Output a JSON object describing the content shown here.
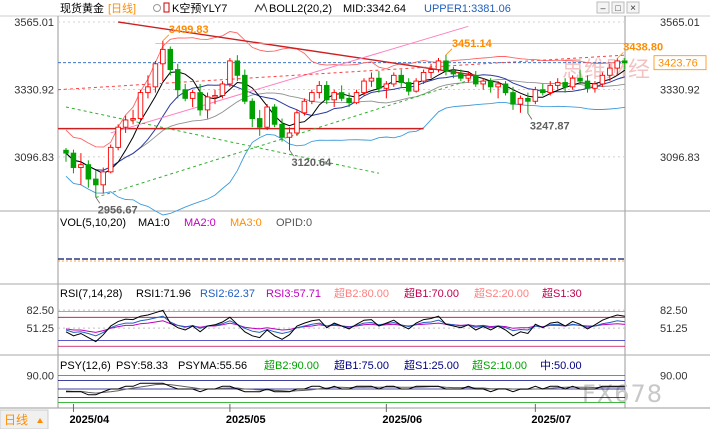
{
  "header": {
    "title": "现货黄金",
    "period": "[日线]",
    "indicator": "K空预YLY7",
    "boll_label": "BOLL2(20,2)",
    "mid_label": "MID:3342.64",
    "upper_label": "UPPER1:3381.06"
  },
  "window_controls": {
    "minimize": "–",
    "maximize": "□",
    "close": "×"
  },
  "colors": {
    "up": "#ff0000",
    "down": "#00a000",
    "ma5": "#000000",
    "ma10": "#0000ff",
    "boll_upper": "#ff6464",
    "boll_lower": "#3c9bdc",
    "accent": "#ff8c00",
    "blue_label": "#2060c0"
  },
  "watermark": {
    "top": "思维财经",
    "bottom": "FX678"
  },
  "corner_label": "日线",
  "chart_data": {
    "type": "candlestick",
    "title": "现货黄金",
    "y_ticks": [
      3565.01,
      3330.92,
      3096.83
    ],
    "y_range": [
      2930,
      3565.01
    ],
    "last_price_label": "3423.76",
    "last_price": 3423.76,
    "x_labels": [
      {
        "i": 1,
        "label": "2025/04"
      },
      {
        "i": 22,
        "label": "2025/05"
      },
      {
        "i": 43,
        "label": "2025/06"
      },
      {
        "i": 63,
        "label": "2025/07"
      }
    ],
    "annotations": [
      {
        "i": 13,
        "price": 3499.83,
        "label": "3499.83",
        "color": "#ff8c00"
      },
      {
        "i": 51,
        "price": 3451.14,
        "label": "3451.14",
        "color": "#ff8c00"
      },
      {
        "i": 74,
        "price": 3438.8,
        "label": "3438.80",
        "color": "#ff8c00"
      },
      {
        "i": 4,
        "price": 2956.67,
        "label": "2956.67",
        "color": "#606060"
      },
      {
        "i": 30,
        "price": 3120.64,
        "label": "3120.64",
        "color": "#606060"
      },
      {
        "i": 62,
        "price": 3247.87,
        "label": "3247.87",
        "color": "#606060"
      }
    ],
    "candles": [
      [
        3120,
        3128,
        3080,
        3110
      ],
      [
        3110,
        3122,
        3040,
        3060
      ],
      [
        3060,
        3110,
        3000,
        3070
      ],
      [
        3070,
        3085,
        2990,
        3020
      ],
      [
        3020,
        3050,
        2956.67,
        3000
      ],
      [
        3000,
        3060,
        2970,
        3045
      ],
      [
        3045,
        3140,
        3040,
        3130
      ],
      [
        3130,
        3210,
        3120,
        3200
      ],
      [
        3200,
        3240,
        3180,
        3225
      ],
      [
        3225,
        3260,
        3210,
        3230
      ],
      [
        3230,
        3330,
        3225,
        3320
      ],
      [
        3320,
        3380,
        3300,
        3340
      ],
      [
        3340,
        3430,
        3320,
        3420
      ],
      [
        3420,
        3499.83,
        3360,
        3470
      ],
      [
        3470,
        3480,
        3380,
        3400
      ],
      [
        3400,
        3420,
        3300,
        3330
      ],
      [
        3330,
        3350,
        3290,
        3300
      ],
      [
        3300,
        3330,
        3270,
        3320
      ],
      [
        3320,
        3350,
        3240,
        3260
      ],
      [
        3260,
        3320,
        3230,
        3305
      ],
      [
        3305,
        3330,
        3280,
        3310
      ],
      [
        3310,
        3360,
        3300,
        3350
      ],
      [
        3350,
        3440,
        3340,
        3430
      ],
      [
        3430,
        3450,
        3360,
        3380
      ],
      [
        3380,
        3400,
        3280,
        3290
      ],
      [
        3290,
        3300,
        3200,
        3230
      ],
      [
        3230,
        3260,
        3170,
        3200
      ],
      [
        3200,
        3280,
        3190,
        3270
      ],
      [
        3270,
        3280,
        3200,
        3210
      ],
      [
        3210,
        3230,
        3150,
        3165
      ],
      [
        3165,
        3200,
        3120.64,
        3180
      ],
      [
        3180,
        3260,
        3170,
        3250
      ],
      [
        3250,
        3300,
        3240,
        3290
      ],
      [
        3290,
        3330,
        3280,
        3320
      ],
      [
        3320,
        3360,
        3300,
        3345
      ],
      [
        3345,
        3360,
        3280,
        3295
      ],
      [
        3295,
        3330,
        3270,
        3320
      ],
      [
        3320,
        3345,
        3290,
        3300
      ],
      [
        3300,
        3320,
        3270,
        3285
      ],
      [
        3285,
        3330,
        3280,
        3320
      ],
      [
        3320,
        3370,
        3310,
        3360
      ],
      [
        3360,
        3390,
        3340,
        3370
      ],
      [
        3370,
        3395,
        3320,
        3335
      ],
      [
        3335,
        3360,
        3300,
        3350
      ],
      [
        3350,
        3390,
        3340,
        3380
      ],
      [
        3380,
        3400,
        3340,
        3355
      ],
      [
        3355,
        3370,
        3310,
        3325
      ],
      [
        3325,
        3370,
        3320,
        3360
      ],
      [
        3360,
        3400,
        3350,
        3390
      ],
      [
        3390,
        3420,
        3370,
        3400
      ],
      [
        3400,
        3440,
        3390,
        3430
      ],
      [
        3430,
        3451.14,
        3380,
        3395
      ],
      [
        3395,
        3410,
        3370,
        3385
      ],
      [
        3385,
        3400,
        3360,
        3370
      ],
      [
        3370,
        3395,
        3355,
        3380
      ],
      [
        3380,
        3395,
        3340,
        3350
      ],
      [
        3350,
        3370,
        3330,
        3360
      ],
      [
        3360,
        3370,
        3320,
        3340
      ],
      [
        3340,
        3360,
        3300,
        3350
      ],
      [
        3350,
        3360,
        3310,
        3320
      ],
      [
        3320,
        3340,
        3260,
        3280
      ],
      [
        3280,
        3310,
        3250,
        3300
      ],
      [
        3300,
        3320,
        3247.87,
        3290
      ],
      [
        3290,
        3340,
        3280,
        3330
      ],
      [
        3330,
        3350,
        3310,
        3320
      ],
      [
        3320,
        3360,
        3310,
        3345
      ],
      [
        3345,
        3370,
        3330,
        3355
      ],
      [
        3355,
        3370,
        3320,
        3340
      ],
      [
        3340,
        3380,
        3330,
        3370
      ],
      [
        3370,
        3400,
        3350,
        3360
      ],
      [
        3360,
        3380,
        3320,
        3335
      ],
      [
        3335,
        3360,
        3320,
        3350
      ],
      [
        3350,
        3390,
        3340,
        3380
      ],
      [
        3380,
        3420,
        3360,
        3405
      ],
      [
        3405,
        3438.8,
        3380,
        3430
      ],
      [
        3430,
        3440,
        3400,
        3423.76
      ]
    ],
    "boll": {
      "label": "BOLL2(20,2)",
      "mid": 3342.64,
      "upper": 3381.06
    },
    "volume_panel": {
      "label": "VOL(5,10,20)",
      "ma_labels": [
        "MA1:0",
        "MA2:0",
        "MA3:0",
        "OPID:0"
      ]
    },
    "rsi_panel": {
      "label": "RSI(7,14,28)",
      "values_labels": [
        "RSI1:71.96",
        "RSI2:62.37",
        "RSI3:57.71"
      ],
      "level_labels": [
        "超B2:80.00",
        "超B1:70.00",
        "超S2:20.00",
        "超S1:30"
      ],
      "y_ticks": [
        82.5,
        51.25
      ],
      "y_range": [
        10,
        100
      ],
      "levels": [
        80,
        70,
        30,
        20
      ],
      "rsi1": [
        45,
        38,
        42,
        35,
        28,
        40,
        55,
        63,
        67,
        66,
        72,
        74,
        78,
        82,
        60,
        52,
        48,
        55,
        45,
        55,
        57,
        62,
        70,
        58,
        45,
        38,
        35,
        48,
        38,
        32,
        40,
        55,
        60,
        64,
        66,
        52,
        60,
        55,
        50,
        58,
        65,
        66,
        55,
        60,
        65,
        56,
        50,
        60,
        66,
        68,
        72,
        58,
        55,
        52,
        57,
        48,
        54,
        48,
        55,
        48,
        38,
        45,
        42,
        58,
        52,
        60,
        62,
        55,
        63,
        58,
        50,
        57,
        65,
        70,
        74,
        71.96
      ],
      "rsi2": [
        48,
        44,
        45,
        42,
        38,
        44,
        52,
        57,
        60,
        60,
        64,
        66,
        69,
        72,
        62,
        56,
        53,
        56,
        51,
        55,
        56,
        59,
        64,
        58,
        51,
        46,
        44,
        49,
        45,
        42,
        45,
        52,
        55,
        58,
        60,
        55,
        58,
        55,
        53,
        56,
        60,
        61,
        57,
        59,
        61,
        57,
        54,
        58,
        61,
        62,
        65,
        59,
        57,
        55,
        57,
        53,
        55,
        52,
        55,
        52,
        47,
        49,
        48,
        55,
        53,
        57,
        58,
        55,
        58,
        56,
        53,
        55,
        59,
        61,
        64,
        62.37
      ],
      "rsi3": [
        50,
        48,
        48,
        46,
        44,
        47,
        51,
        54,
        56,
        56,
        59,
        60,
        62,
        64,
        59,
        56,
        54,
        55,
        53,
        55,
        55,
        57,
        60,
        57,
        53,
        51,
        50,
        52,
        50,
        48,
        49,
        52,
        54,
        55,
        57,
        55,
        56,
        55,
        54,
        55,
        57,
        58,
        56,
        57,
        58,
        56,
        55,
        57,
        58,
        59,
        60,
        58,
        57,
        56,
        57,
        55,
        56,
        54,
        55,
        54,
        51,
        52,
        52,
        55,
        54,
        56,
        56,
        55,
        57,
        56,
        55,
        55,
        57,
        58,
        59,
        57.71
      ]
    },
    "psy_panel": {
      "label": "PSY(12,6)",
      "values_labels": [
        "PSY:58.33",
        "PSYMA:55.56"
      ],
      "level_labels": [
        "超B2:90.00",
        "超B1:75.00",
        "超S1:25.00",
        "超S2:10.00",
        "中:50.00"
      ],
      "y_ticks": [
        90.0
      ],
      "y_range": [
        0,
        100
      ],
      "levels": [
        90,
        75,
        50,
        25,
        10
      ],
      "psy": [
        42,
        42,
        42,
        33,
        33,
        42,
        50,
        50,
        58,
        58,
        67,
        67,
        67,
        67,
        58,
        50,
        50,
        50,
        42,
        50,
        50,
        58,
        58,
        50,
        42,
        42,
        42,
        50,
        42,
        42,
        42,
        50,
        50,
        58,
        58,
        50,
        58,
        50,
        50,
        58,
        58,
        58,
        50,
        58,
        58,
        50,
        50,
        58,
        58,
        58,
        58,
        50,
        50,
        50,
        58,
        50,
        50,
        42,
        50,
        50,
        42,
        50,
        50,
        58,
        50,
        58,
        58,
        50,
        58,
        50,
        50,
        50,
        58,
        58,
        58,
        58.33
      ],
      "psyma": [
        44,
        43,
        43,
        40,
        38,
        40,
        42,
        45,
        49,
        53,
        56,
        59,
        63,
        64,
        63,
        60,
        57,
        54,
        51,
        50,
        50,
        52,
        53,
        53,
        50,
        49,
        47,
        48,
        46,
        45,
        43,
        45,
        46,
        48,
        51,
        53,
        55,
        55,
        54,
        55,
        55,
        56,
        55,
        56,
        56,
        55,
        55,
        55,
        56,
        57,
        57,
        55,
        54,
        54,
        54,
        53,
        53,
        51,
        51,
        51,
        50,
        49,
        49,
        50,
        51,
        52,
        54,
        55,
        56,
        55,
        55,
        54,
        55,
        56,
        56,
        55.56
      ]
    }
  }
}
